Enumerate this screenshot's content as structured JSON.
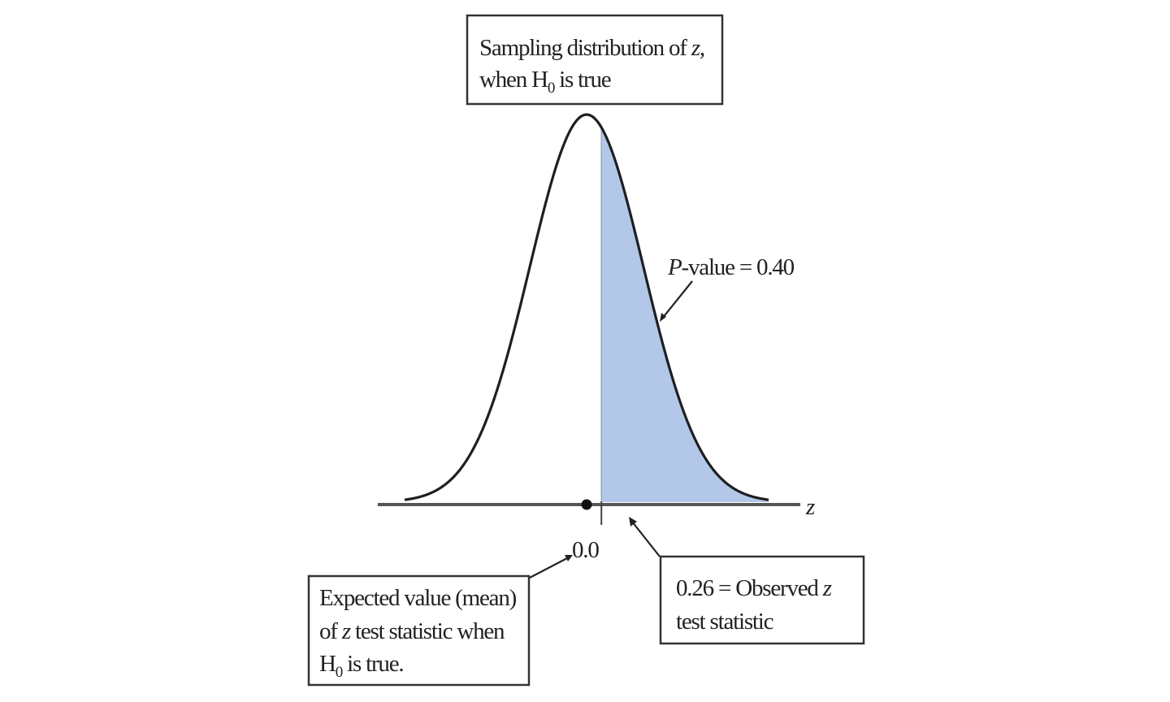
{
  "diagram": {
    "colors": {
      "curve": "#1f1f1f",
      "shade": "#b3c8e8",
      "axis": "#555555",
      "box_border": "#333333",
      "text": "#222222"
    },
    "top_box": {
      "line1_prefix": "Sampling distribution of ",
      "line1_var": "z",
      "line1_suffix": ",",
      "line2_prefix": "when H",
      "line2_sub": "0",
      "line2_suffix": " is true"
    },
    "p_value_label": {
      "var": "P",
      "text": "-value = 0.40"
    },
    "axis_variable": "z",
    "mean_label": "0.0",
    "mean_box": {
      "line1": "Expected value (mean)",
      "line2_prefix": "of ",
      "line2_var": "z",
      "line2_suffix": " test statistic when",
      "line3_prefix": "H",
      "line3_sub": "0",
      "line3_suffix": " is true."
    },
    "observed_box": {
      "line1_prefix": "0.26 = Observed ",
      "line1_var": "z",
      "line2": "test statistic"
    }
  },
  "chart_data": {
    "type": "area",
    "distribution": "standard normal",
    "mean": 0.0,
    "observed_z": 0.26,
    "p_value": 0.4,
    "shaded_region": "z >= 0.26",
    "x_range": [
      -3.2,
      3.2
    ]
  }
}
